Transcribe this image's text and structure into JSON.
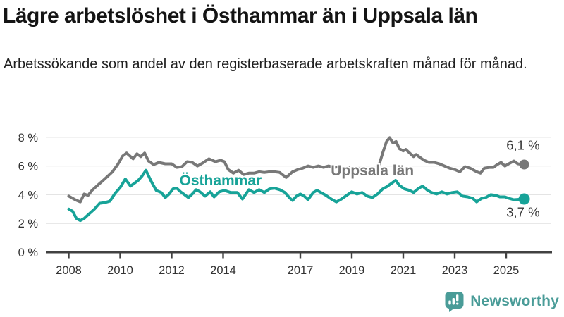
{
  "header": {
    "title": "Lägre arbetslöshet i Östhammar än i Uppsala län",
    "subtitle": "Arbetssökande som andel av den registerbaserade arbetskraften månad för månad."
  },
  "branding": {
    "name": "Newsworthy",
    "color": "#4a9c98",
    "icon": "newsworthy-chart-bubble-icon"
  },
  "chart_data": {
    "type": "line",
    "unit": "%",
    "grid": "horizontal",
    "x_axis": {
      "ticks": [
        2008,
        2010,
        2012,
        2014,
        2017,
        2019,
        2021,
        2023,
        2025
      ],
      "tick_labels": [
        "2008",
        "2010",
        "2012",
        "2014",
        "2017",
        "2019",
        "2021",
        "2023",
        "2025"
      ],
      "range_years": [
        2008.0,
        2025.7
      ]
    },
    "y_axis": {
      "ticks": [
        0,
        2,
        4,
        6,
        8
      ],
      "tick_labels": [
        "0 %",
        "2 %",
        "4 %",
        "6 %",
        "8 %"
      ],
      "lim": [
        0,
        8.6
      ]
    },
    "series": [
      {
        "name": "Uppsala län",
        "color": "#787878",
        "end_label": "6,1 %",
        "end_value": 6.1,
        "end_label_side": "above",
        "dot_radius": 7,
        "label_anchor": {
          "x": 2019.8,
          "y": 5.68
        },
        "points": [
          [
            2008.0,
            3.9
          ],
          [
            2008.25,
            3.65
          ],
          [
            2008.45,
            3.5
          ],
          [
            2008.6,
            4.05
          ],
          [
            2008.75,
            3.95
          ],
          [
            2008.9,
            4.3
          ],
          [
            2009.15,
            4.7
          ],
          [
            2009.4,
            5.1
          ],
          [
            2009.7,
            5.6
          ],
          [
            2009.9,
            6.1
          ],
          [
            2010.1,
            6.7
          ],
          [
            2010.25,
            6.9
          ],
          [
            2010.5,
            6.5
          ],
          [
            2010.65,
            6.85
          ],
          [
            2010.8,
            6.65
          ],
          [
            2010.95,
            6.9
          ],
          [
            2011.1,
            6.35
          ],
          [
            2011.3,
            6.1
          ],
          [
            2011.5,
            6.25
          ],
          [
            2011.75,
            6.15
          ],
          [
            2012.0,
            6.15
          ],
          [
            2012.2,
            5.9
          ],
          [
            2012.4,
            5.95
          ],
          [
            2012.6,
            6.3
          ],
          [
            2012.8,
            6.25
          ],
          [
            2013.0,
            6.0
          ],
          [
            2013.2,
            6.2
          ],
          [
            2013.45,
            6.5
          ],
          [
            2013.7,
            6.3
          ],
          [
            2013.9,
            6.4
          ],
          [
            2014.05,
            6.3
          ],
          [
            2014.2,
            5.75
          ],
          [
            2014.4,
            5.5
          ],
          [
            2014.6,
            5.7
          ],
          [
            2014.8,
            5.4
          ],
          [
            2015.0,
            5.5
          ],
          [
            2015.2,
            5.5
          ],
          [
            2015.4,
            5.6
          ],
          [
            2015.6,
            5.55
          ],
          [
            2015.8,
            5.6
          ],
          [
            2016.0,
            5.6
          ],
          [
            2016.2,
            5.55
          ],
          [
            2016.45,
            5.2
          ],
          [
            2016.7,
            5.6
          ],
          [
            2016.9,
            5.75
          ],
          [
            2017.1,
            5.85
          ],
          [
            2017.3,
            6.0
          ],
          [
            2017.5,
            5.9
          ],
          [
            2017.7,
            6.0
          ],
          [
            2017.9,
            5.9
          ],
          [
            2018.1,
            6.0
          ],
          [
            2018.3,
            5.9
          ],
          [
            2018.5,
            5.95
          ],
          [
            2018.7,
            5.85
          ],
          [
            2018.9,
            5.9
          ],
          [
            2019.1,
            5.9
          ],
          [
            2019.3,
            5.8
          ],
          [
            2019.5,
            5.7
          ],
          [
            2019.7,
            5.55
          ],
          [
            2019.9,
            5.5
          ],
          [
            2020.05,
            6.0
          ],
          [
            2020.2,
            6.9
          ],
          [
            2020.35,
            7.7
          ],
          [
            2020.47,
            7.97
          ],
          [
            2020.6,
            7.6
          ],
          [
            2020.72,
            7.7
          ],
          [
            2020.85,
            7.2
          ],
          [
            2021.0,
            7.05
          ],
          [
            2021.1,
            7.15
          ],
          [
            2021.25,
            6.9
          ],
          [
            2021.4,
            6.65
          ],
          [
            2021.5,
            6.8
          ],
          [
            2021.65,
            6.6
          ],
          [
            2021.8,
            6.4
          ],
          [
            2022.0,
            6.25
          ],
          [
            2022.2,
            6.25
          ],
          [
            2022.4,
            6.15
          ],
          [
            2022.6,
            6.0
          ],
          [
            2022.8,
            5.85
          ],
          [
            2023.0,
            5.75
          ],
          [
            2023.2,
            5.6
          ],
          [
            2023.4,
            5.95
          ],
          [
            2023.6,
            5.85
          ],
          [
            2023.85,
            5.6
          ],
          [
            2024.0,
            5.5
          ],
          [
            2024.15,
            5.85
          ],
          [
            2024.35,
            5.9
          ],
          [
            2024.5,
            5.9
          ],
          [
            2024.65,
            6.1
          ],
          [
            2024.8,
            6.25
          ],
          [
            2024.95,
            6.0
          ],
          [
            2025.1,
            6.15
          ],
          [
            2025.3,
            6.35
          ],
          [
            2025.45,
            6.15
          ],
          [
            2025.7,
            6.1
          ]
        ]
      },
      {
        "name": "Östhammar",
        "color": "#17a398",
        "end_label": "3,7 %",
        "end_value": 3.7,
        "end_label_side": "below",
        "dot_radius": 8,
        "label_anchor": {
          "x": 2013.9,
          "y": 5.0
        },
        "points": [
          [
            2008.0,
            3.0
          ],
          [
            2008.15,
            2.85
          ],
          [
            2008.3,
            2.35
          ],
          [
            2008.45,
            2.2
          ],
          [
            2008.6,
            2.35
          ],
          [
            2008.75,
            2.6
          ],
          [
            2009.0,
            3.0
          ],
          [
            2009.2,
            3.4
          ],
          [
            2009.4,
            3.45
          ],
          [
            2009.6,
            3.55
          ],
          [
            2009.8,
            4.1
          ],
          [
            2010.0,
            4.5
          ],
          [
            2010.2,
            5.1
          ],
          [
            2010.4,
            4.6
          ],
          [
            2010.55,
            4.8
          ],
          [
            2010.7,
            5.0
          ],
          [
            2010.85,
            5.3
          ],
          [
            2011.0,
            5.7
          ],
          [
            2011.2,
            4.95
          ],
          [
            2011.4,
            4.3
          ],
          [
            2011.6,
            4.15
          ],
          [
            2011.75,
            3.8
          ],
          [
            2011.9,
            4.05
          ],
          [
            2012.05,
            4.4
          ],
          [
            2012.2,
            4.45
          ],
          [
            2012.35,
            4.2
          ],
          [
            2012.5,
            4.0
          ],
          [
            2012.65,
            3.8
          ],
          [
            2012.8,
            4.05
          ],
          [
            2012.95,
            4.35
          ],
          [
            2013.1,
            4.2
          ],
          [
            2013.3,
            3.9
          ],
          [
            2013.5,
            4.2
          ],
          [
            2013.65,
            3.85
          ],
          [
            2013.85,
            4.2
          ],
          [
            2014.05,
            4.3
          ],
          [
            2014.3,
            4.15
          ],
          [
            2014.55,
            4.15
          ],
          [
            2014.75,
            3.7
          ],
          [
            2015.0,
            4.35
          ],
          [
            2015.2,
            4.15
          ],
          [
            2015.4,
            4.35
          ],
          [
            2015.6,
            4.15
          ],
          [
            2015.8,
            4.4
          ],
          [
            2016.0,
            4.45
          ],
          [
            2016.2,
            4.35
          ],
          [
            2016.4,
            4.15
          ],
          [
            2016.6,
            3.75
          ],
          [
            2016.7,
            3.6
          ],
          [
            2016.85,
            3.9
          ],
          [
            2017.0,
            4.05
          ],
          [
            2017.15,
            3.9
          ],
          [
            2017.3,
            3.65
          ],
          [
            2017.5,
            4.15
          ],
          [
            2017.65,
            4.3
          ],
          [
            2017.8,
            4.15
          ],
          [
            2018.0,
            3.95
          ],
          [
            2018.2,
            3.7
          ],
          [
            2018.4,
            3.5
          ],
          [
            2018.6,
            3.7
          ],
          [
            2018.8,
            3.95
          ],
          [
            2019.0,
            4.2
          ],
          [
            2019.2,
            4.05
          ],
          [
            2019.4,
            4.15
          ],
          [
            2019.6,
            3.9
          ],
          [
            2019.8,
            3.8
          ],
          [
            2020.0,
            4.05
          ],
          [
            2020.2,
            4.4
          ],
          [
            2020.35,
            4.55
          ],
          [
            2020.55,
            4.8
          ],
          [
            2020.7,
            5.0
          ],
          [
            2020.85,
            4.65
          ],
          [
            2021.05,
            4.4
          ],
          [
            2021.25,
            4.3
          ],
          [
            2021.4,
            4.15
          ],
          [
            2021.6,
            4.45
          ],
          [
            2021.75,
            4.6
          ],
          [
            2021.95,
            4.3
          ],
          [
            2022.1,
            4.15
          ],
          [
            2022.3,
            4.05
          ],
          [
            2022.5,
            4.2
          ],
          [
            2022.7,
            4.05
          ],
          [
            2022.9,
            4.15
          ],
          [
            2023.1,
            4.2
          ],
          [
            2023.3,
            3.9
          ],
          [
            2023.5,
            3.85
          ],
          [
            2023.7,
            3.75
          ],
          [
            2023.85,
            3.5
          ],
          [
            2024.05,
            3.75
          ],
          [
            2024.2,
            3.8
          ],
          [
            2024.4,
            4.0
          ],
          [
            2024.6,
            3.95
          ],
          [
            2024.75,
            3.85
          ],
          [
            2024.95,
            3.85
          ],
          [
            2025.1,
            3.75
          ],
          [
            2025.3,
            3.65
          ],
          [
            2025.7,
            3.7
          ]
        ]
      }
    ],
    "style": {
      "grid_color": "#e4e4e4",
      "axis_color": "#414141",
      "tick_label_color": "#333333",
      "end_label_color": "#3a3a3a",
      "line_width": 4
    }
  }
}
